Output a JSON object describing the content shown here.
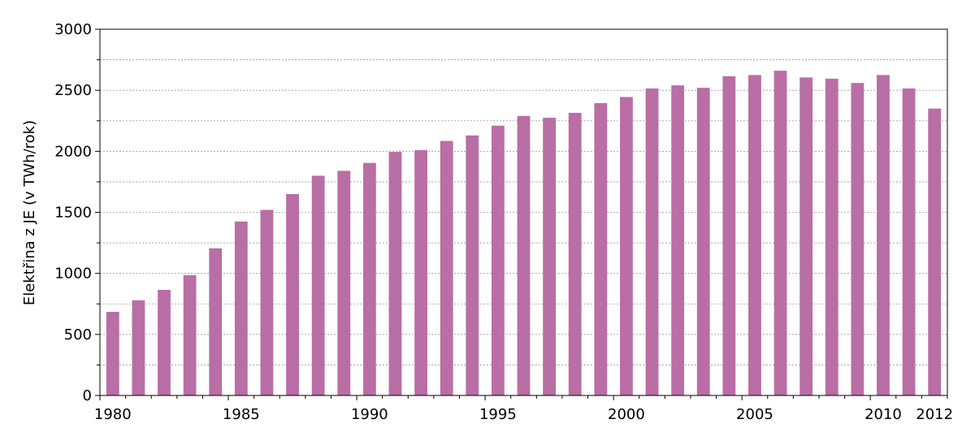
{
  "chart_data": {
    "type": "bar",
    "title": "",
    "xlabel": "",
    "ylabel": "Elektřina z JE (v TWh/rok)",
    "x": [
      1980,
      1981,
      1982,
      1983,
      1984,
      1985,
      1986,
      1987,
      1988,
      1989,
      1990,
      1991,
      1992,
      1993,
      1994,
      1995,
      1996,
      1997,
      1998,
      1999,
      2000,
      2001,
      2002,
      2003,
      2004,
      2005,
      2006,
      2007,
      2008,
      2009,
      2010,
      2011,
      2012
    ],
    "values": [
      685,
      780,
      865,
      985,
      1205,
      1425,
      1520,
      1650,
      1800,
      1840,
      1905,
      1995,
      2010,
      2085,
      2130,
      2210,
      2290,
      2275,
      2315,
      2395,
      2445,
      2515,
      2540,
      2520,
      2615,
      2625,
      2660,
      2605,
      2595,
      2560,
      2625,
      2515,
      2350
    ],
    "xticks": [
      "1980",
      "1985",
      "1990",
      "1995",
      "2000",
      "2005",
      "2010",
      "2012"
    ],
    "yticks": [
      "0",
      "500",
      "1000",
      "1500",
      "2000",
      "2500",
      "3000"
    ],
    "ylim": [
      0,
      3000
    ],
    "grid": "horizontal-dashed",
    "bar_color": "#b96ea5"
  }
}
